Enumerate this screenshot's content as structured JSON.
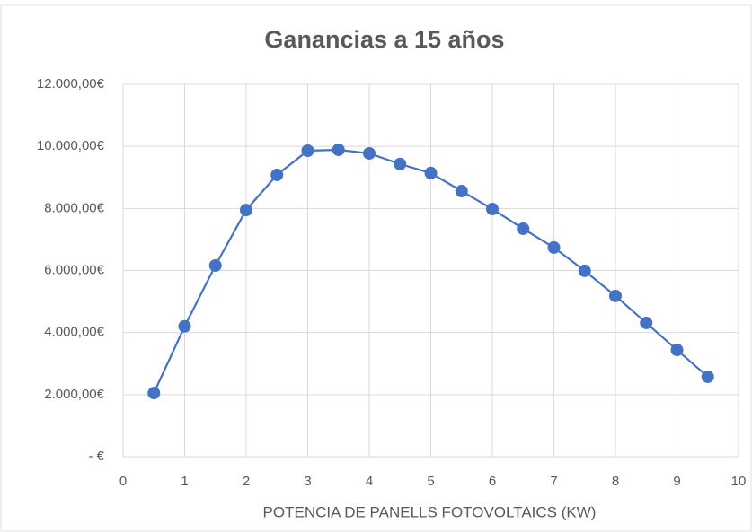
{
  "chart_data": {
    "type": "line",
    "title": "Ganancias a 15 años",
    "x_label": "POTENCIA DE PANELLS FOTOVOLTAICS (KW)",
    "x": [
      0.5,
      1,
      1.5,
      2,
      2.5,
      3,
      3.5,
      4,
      4.5,
      5,
      5.5,
      6,
      6.5,
      7,
      7.5,
      8,
      8.5,
      9,
      9.5
    ],
    "series": [
      {
        "color": "#4472c4",
        "values": [
          2050,
          4200,
          6160,
          7950,
          9080,
          9860,
          9890,
          9775,
          9430,
          9140,
          8560,
          7980,
          7345,
          6740,
          5990,
          5180,
          4310,
          3440,
          2575
        ]
      }
    ],
    "xlim": [
      0,
      10
    ],
    "xticks": [
      0,
      1,
      2,
      3,
      4,
      5,
      6,
      7,
      8,
      9,
      10
    ],
    "ylim": [
      0,
      12000
    ],
    "yticks": [
      {
        "value": 0,
        "label": "-  €"
      },
      {
        "value": 2000,
        "label": "2.000,00€"
      },
      {
        "value": 4000,
        "label": "4.000,00€"
      },
      {
        "value": 6000,
        "label": "6.000,00€"
      },
      {
        "value": 8000,
        "label": "8.000,00€"
      },
      {
        "value": 10000,
        "label": "10.000,00€"
      },
      {
        "value": 12000,
        "label": "12.000,00€"
      }
    ],
    "grid": true
  }
}
